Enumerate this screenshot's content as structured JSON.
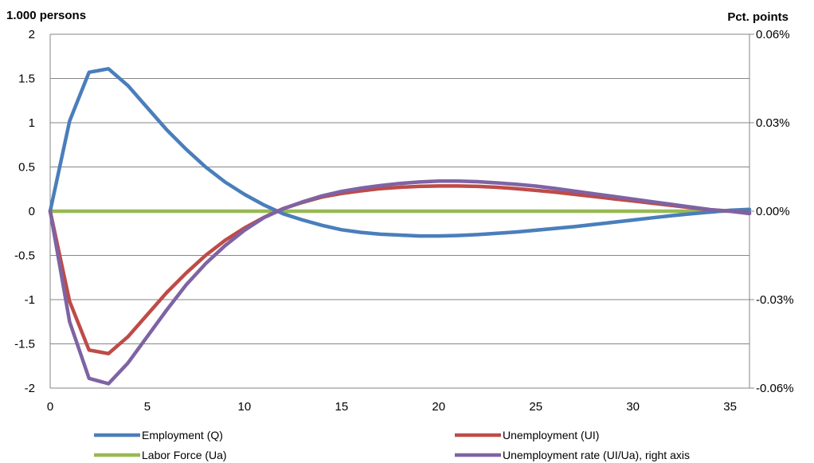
{
  "chart_data": {
    "type": "line",
    "y_left_label": "1.000 persons",
    "y_right_label": "Pct. points",
    "xlim": [
      0,
      36
    ],
    "ylim_left": [
      -2,
      2
    ],
    "ylim_right": [
      -0.06,
      0.06
    ],
    "x_ticks": [
      0,
      5,
      10,
      15,
      20,
      25,
      30,
      35
    ],
    "y_left_ticks": [
      -2,
      -1.5,
      -1,
      -0.5,
      0,
      0.5,
      1,
      1.5,
      2
    ],
    "y_left_tick_labels": [
      "-2",
      "-1.5",
      "-1",
      "-0.5",
      "0",
      "0.5",
      "1",
      "1.5",
      "2"
    ],
    "y_right_ticks": [
      -0.06,
      -0.03,
      0,
      0.03,
      0.06
    ],
    "y_right_tick_labels": [
      "-0.06%",
      "-0.03%",
      "0.00%",
      "0.03%",
      "0.06%"
    ],
    "grid": "horizontal",
    "legend_position": "bottom",
    "series": [
      {
        "name": "Employment (Q)",
        "axis": "left",
        "color": "#4A7EBB",
        "x": [
          0,
          1,
          2,
          3,
          4,
          5,
          6,
          7,
          8,
          9,
          10,
          11,
          12,
          13,
          14,
          15,
          16,
          17,
          18,
          19,
          20,
          21,
          22,
          23,
          24,
          25,
          26,
          27,
          28,
          29,
          30,
          31,
          32,
          33,
          34,
          35,
          36
        ],
        "values": [
          0,
          1.02,
          1.57,
          1.61,
          1.42,
          1.17,
          0.92,
          0.7,
          0.5,
          0.33,
          0.19,
          0.07,
          -0.03,
          -0.1,
          -0.16,
          -0.21,
          -0.24,
          -0.26,
          -0.27,
          -0.28,
          -0.28,
          -0.275,
          -0.265,
          -0.25,
          -0.235,
          -0.215,
          -0.195,
          -0.175,
          -0.15,
          -0.125,
          -0.1,
          -0.075,
          -0.05,
          -0.03,
          -0.01,
          0.01,
          0.02
        ]
      },
      {
        "name": "Unemployment (UI)",
        "axis": "left",
        "color": "#BE4B48",
        "x": [
          0,
          1,
          2,
          3,
          4,
          5,
          6,
          7,
          8,
          9,
          10,
          11,
          12,
          13,
          14,
          15,
          16,
          17,
          18,
          19,
          20,
          21,
          22,
          23,
          24,
          25,
          26,
          27,
          28,
          29,
          30,
          31,
          32,
          33,
          34,
          35,
          36
        ],
        "values": [
          0,
          -1.02,
          -1.57,
          -1.61,
          -1.42,
          -1.17,
          -0.92,
          -0.7,
          -0.5,
          -0.33,
          -0.19,
          -0.07,
          0.03,
          0.1,
          0.16,
          0.2,
          0.23,
          0.255,
          0.27,
          0.28,
          0.285,
          0.285,
          0.28,
          0.27,
          0.255,
          0.235,
          0.215,
          0.19,
          0.165,
          0.14,
          0.115,
          0.09,
          0.065,
          0.04,
          0.015,
          0.0,
          -0.02
        ]
      },
      {
        "name": "Labor Force (Ua)",
        "axis": "left",
        "color": "#98B954",
        "x": [
          0,
          36
        ],
        "values": [
          0,
          0
        ]
      },
      {
        "name": "Unemployment rate (UI/Ua), right axis",
        "axis": "right",
        "color": "#7E63A4",
        "x": [
          0,
          1,
          2,
          3,
          4,
          5,
          6,
          7,
          8,
          9,
          10,
          11,
          12,
          13,
          14,
          15,
          16,
          17,
          18,
          19,
          20,
          21,
          22,
          23,
          24,
          25,
          26,
          27,
          28,
          29,
          30,
          31,
          32,
          33,
          34,
          35,
          36
        ],
        "values": [
          0,
          -0.0375,
          -0.0567,
          -0.0585,
          -0.0515,
          -0.0425,
          -0.0335,
          -0.025,
          -0.0178,
          -0.0117,
          -0.0065,
          -0.0022,
          0.0008,
          0.0032,
          0.0052,
          0.0067,
          0.0078,
          0.0087,
          0.0094,
          0.0099,
          0.0102,
          0.0102,
          0.01,
          0.0096,
          0.0091,
          0.0085,
          0.0077,
          0.0068,
          0.0059,
          0.005,
          0.0041,
          0.0032,
          0.0023,
          0.0014,
          0.0005,
          0.0,
          -0.0008
        ]
      }
    ]
  }
}
